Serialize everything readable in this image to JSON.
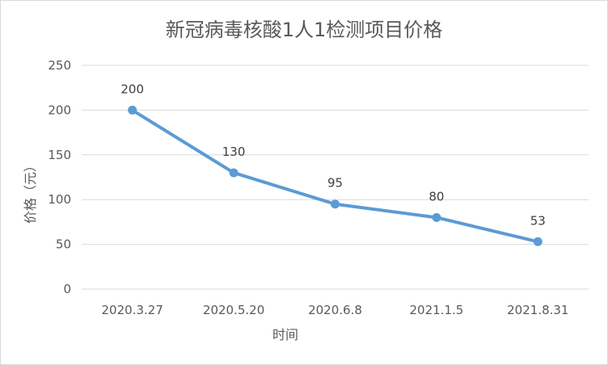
{
  "chart_data": {
    "type": "line",
    "title": "新冠病毒核酸1人1检测项目价格",
    "xlabel": "时间",
    "ylabel": "价格（元）",
    "categories": [
      "2020.3.27",
      "2020.5.20",
      "2020.6.8",
      "2021.1.5",
      "2021.8.31"
    ],
    "series": [
      {
        "values": [
          200,
          130,
          95,
          80,
          53
        ]
      }
    ],
    "ylim": [
      0,
      250
    ],
    "yticks": [
      "0",
      "50",
      "100",
      "150",
      "200",
      "250"
    ],
    "grid": true,
    "line_color": "#5b9bd5",
    "grid_color": "#d9d9d9"
  }
}
